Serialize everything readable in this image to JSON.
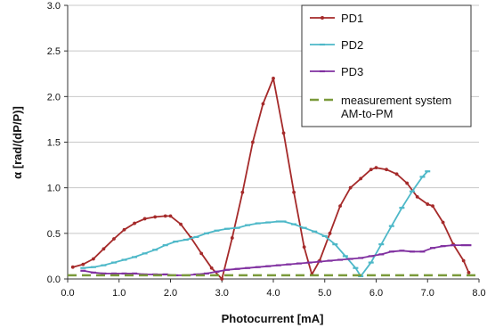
{
  "chart_data": {
    "type": "line",
    "title": "",
    "xlabel": "Photocurrent [mA]",
    "ylabel": "α [rad/(dP/P)]",
    "xlim": [
      0,
      8
    ],
    "ylim": [
      0,
      3
    ],
    "x_ticks": [
      "0.0",
      "1.0",
      "2.0",
      "3.0",
      "4.0",
      "5.0",
      "6.0",
      "7.0",
      "8.0"
    ],
    "y_ticks": [
      "0.0",
      "0.5",
      "1.0",
      "1.5",
      "2.0",
      "2.5",
      "3.0"
    ],
    "grid": "horizontal",
    "legend_position": "top-right",
    "series": [
      {
        "name": "PD1",
        "color": "#a52a2a",
        "marker": "dot",
        "x": [
          0.1,
          0.3,
          0.5,
          0.7,
          0.9,
          1.1,
          1.3,
          1.5,
          1.7,
          1.9,
          2.0,
          2.2,
          2.4,
          2.6,
          2.8,
          3.0,
          3.2,
          3.4,
          3.6,
          3.8,
          4.0,
          4.2,
          4.4,
          4.6,
          4.75,
          4.9,
          5.1,
          5.3,
          5.5,
          5.7,
          5.9,
          6.0,
          6.2,
          6.4,
          6.6,
          6.8,
          7.0,
          7.1,
          7.3,
          7.5,
          7.7,
          7.8
        ],
        "y": [
          0.13,
          0.16,
          0.22,
          0.33,
          0.44,
          0.54,
          0.61,
          0.66,
          0.68,
          0.69,
          0.69,
          0.6,
          0.45,
          0.28,
          0.12,
          0.0,
          0.45,
          0.95,
          1.5,
          1.92,
          2.2,
          1.6,
          0.95,
          0.35,
          0.05,
          0.2,
          0.5,
          0.8,
          1.0,
          1.1,
          1.2,
          1.22,
          1.2,
          1.15,
          1.05,
          0.9,
          0.82,
          0.8,
          0.62,
          0.38,
          0.2,
          0.07
        ]
      },
      {
        "name": "PD2",
        "color": "#4db8c8",
        "marker": "dash",
        "x": [
          0.3,
          0.5,
          0.7,
          0.9,
          1.1,
          1.3,
          1.5,
          1.7,
          1.9,
          2.1,
          2.3,
          2.5,
          2.7,
          2.9,
          3.1,
          3.3,
          3.5,
          3.7,
          3.9,
          4.1,
          4.2,
          4.4,
          4.6,
          4.8,
          5.0,
          5.2,
          5.4,
          5.6,
          5.7,
          5.9,
          6.1,
          6.3,
          6.5,
          6.7,
          6.9,
          7.0
        ],
        "y": [
          0.12,
          0.13,
          0.15,
          0.18,
          0.21,
          0.24,
          0.28,
          0.32,
          0.37,
          0.41,
          0.43,
          0.46,
          0.5,
          0.53,
          0.55,
          0.56,
          0.59,
          0.61,
          0.62,
          0.63,
          0.63,
          0.6,
          0.56,
          0.52,
          0.47,
          0.38,
          0.25,
          0.12,
          0.03,
          0.18,
          0.38,
          0.58,
          0.78,
          0.96,
          1.12,
          1.18
        ]
      },
      {
        "name": "PD3",
        "color": "#8030a0",
        "marker": "dash",
        "x": [
          0.3,
          0.5,
          0.7,
          0.9,
          1.1,
          1.3,
          1.5,
          1.7,
          1.9,
          2.1,
          2.3,
          2.5,
          2.7,
          2.9,
          3.1,
          3.3,
          3.5,
          3.7,
          3.9,
          4.1,
          4.3,
          4.5,
          4.7,
          4.9,
          5.1,
          5.3,
          5.5,
          5.7,
          5.9,
          6.1,
          6.3,
          6.5,
          6.7,
          6.9,
          7.1,
          7.3,
          7.5,
          7.7,
          7.8
        ],
        "y": [
          0.09,
          0.07,
          0.06,
          0.06,
          0.06,
          0.06,
          0.05,
          0.05,
          0.05,
          0.04,
          0.04,
          0.05,
          0.06,
          0.08,
          0.1,
          0.11,
          0.12,
          0.13,
          0.14,
          0.15,
          0.16,
          0.17,
          0.18,
          0.19,
          0.2,
          0.21,
          0.22,
          0.23,
          0.25,
          0.27,
          0.3,
          0.31,
          0.3,
          0.3,
          0.34,
          0.36,
          0.37,
          0.37,
          0.37
        ]
      },
      {
        "name": "measurement system AM-to-PM",
        "legend_lines": [
          "measurement system",
          "AM-to-PM"
        ],
        "color": "#7a9a3a",
        "marker": "none",
        "style": "dashed",
        "x": [
          0.0,
          8.0
        ],
        "y": [
          0.04,
          0.04
        ]
      }
    ]
  }
}
